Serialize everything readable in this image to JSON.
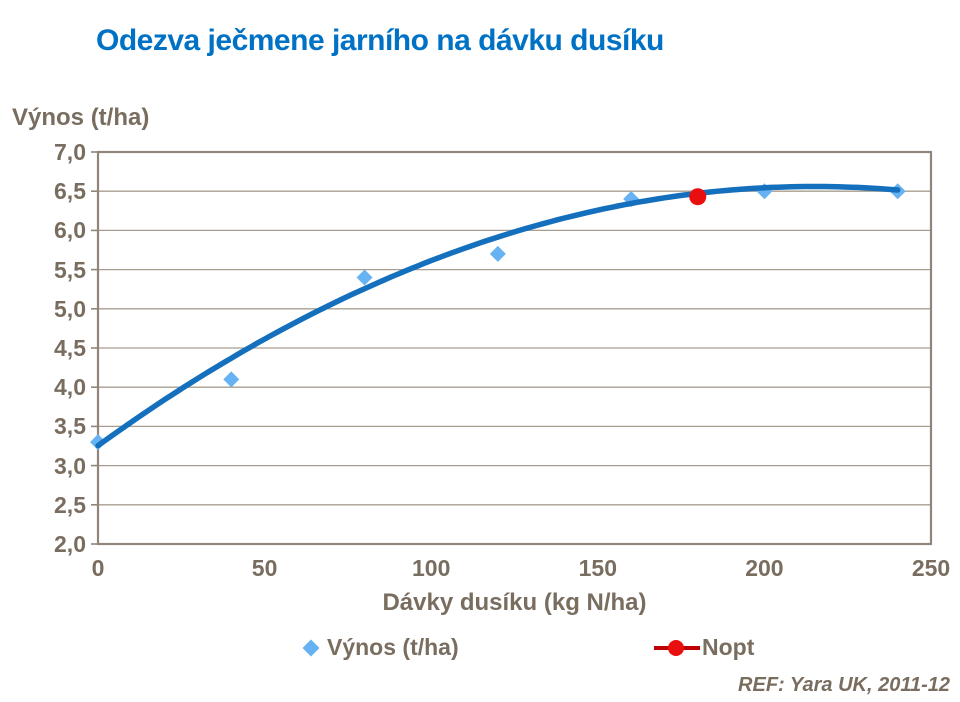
{
  "title": "Odezva ječmene jarního na dávku dusíku",
  "colors": {
    "title_blue": "#0072c6",
    "curve_blue": "#1470bd",
    "point_blue": "#66b2f2",
    "nopt_red": "#e90f0f",
    "nopt_line_red": "#c00000",
    "axis_text": "#796d5f",
    "gridline": "#a89e90",
    "plot_border": "#8f8679"
  },
  "legend": {
    "items": [
      {
        "label": "Výnos (t/ha)",
        "marker": "diamond-icon"
      },
      {
        "label": "Nopt",
        "marker": "circle-line-icon"
      }
    ]
  },
  "footer": {
    "ref": "REF: Yara UK, 2011-12"
  },
  "chart_data": {
    "type": "scatter",
    "title": "Odezva ječmene jarního na dávku dusíku",
    "xlabel": "Dávky dusíku (kg N/ha)",
    "ylabel": "Výnos (t/ha)",
    "xlim": [
      0,
      250
    ],
    "ylim": [
      2.0,
      7.0
    ],
    "x_ticks": [
      0,
      50,
      100,
      150,
      200,
      250
    ],
    "y_ticks": [
      7.0,
      6.5,
      6.0,
      5.5,
      5.0,
      4.5,
      4.0,
      3.5,
      3.0,
      2.5,
      2.0
    ],
    "y_tick_labels": [
      "7,0",
      "6,5",
      "6,0",
      "5,5",
      "5,0",
      "4,5",
      "4,0",
      "3,5",
      "3,0",
      "2,5",
      "2,0"
    ],
    "grid": "horizontal",
    "legend_position": "bottom",
    "series": [
      {
        "name": "Výnos (t/ha)",
        "marker": "diamond",
        "x": [
          0,
          40,
          80,
          120,
          160,
          200,
          240
        ],
        "y": [
          3.3,
          4.1,
          5.4,
          5.7,
          6.4,
          6.5,
          6.5
        ]
      },
      {
        "name": "Nopt",
        "marker": "circle",
        "x": [
          180
        ],
        "y": [
          6.43
        ]
      }
    ],
    "trend": {
      "type": "quadratic",
      "vertex_x": 215,
      "vertex_y": 6.56,
      "k": 7.15e-05,
      "x_range": [
        0,
        240
      ],
      "stroke_width": 5.5
    }
  }
}
